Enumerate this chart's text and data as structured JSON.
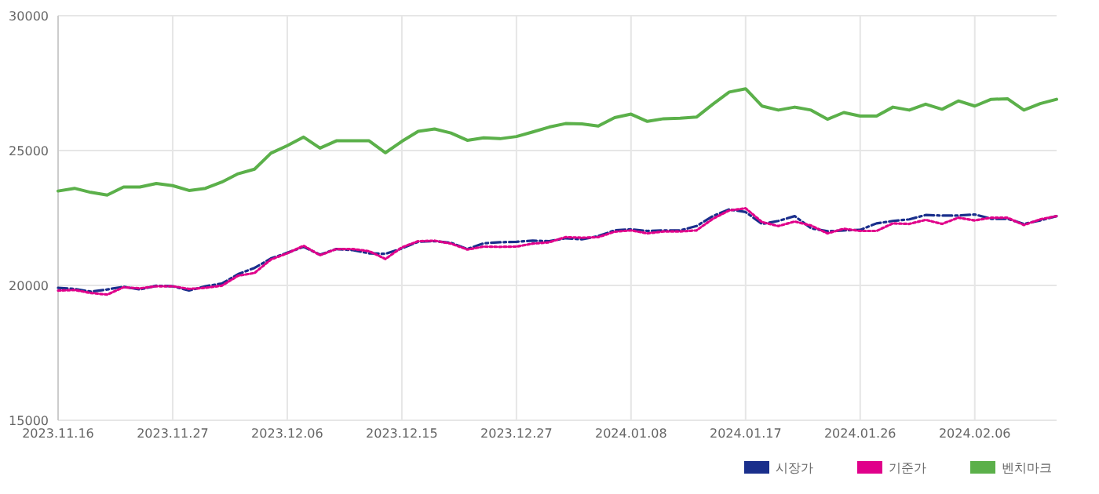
{
  "chart_data": {
    "type": "line",
    "categories": [
      "2023.11.16",
      null,
      null,
      null,
      null,
      null,
      null,
      "2023.11.27",
      null,
      null,
      null,
      null,
      null,
      null,
      "2023.12.06",
      null,
      null,
      null,
      null,
      null,
      null,
      "2023.12.15",
      null,
      null,
      null,
      null,
      null,
      null,
      "2023.12.27",
      null,
      null,
      null,
      null,
      null,
      null,
      "2024.01.08",
      null,
      null,
      null,
      null,
      null,
      null,
      "2024.01.17",
      null,
      null,
      null,
      null,
      null,
      null,
      "2024.01.26",
      null,
      null,
      null,
      null,
      null,
      null,
      "2024.02.06",
      null,
      null,
      null,
      null,
      null
    ],
    "series": [
      {
        "name": "시장가",
        "color": "#1a2f8c",
        "line_style": "dashed",
        "values": [
          19910,
          19870,
          19770,
          19850,
          19950,
          19850,
          19990,
          19970,
          19810,
          19970,
          20070,
          20420,
          20650,
          21000,
          21210,
          21430,
          21140,
          21350,
          21310,
          21190,
          21170,
          21370,
          21620,
          21640,
          21580,
          21350,
          21560,
          21600,
          21620,
          21660,
          21640,
          21750,
          21710,
          21830,
          22040,
          22080,
          22020,
          22040,
          22040,
          22200,
          22570,
          22820,
          22720,
          22280,
          22390,
          22570,
          22120,
          22010,
          22040,
          22060,
          22300,
          22390,
          22450,
          22610,
          22590,
          22590,
          22630,
          22470,
          22470,
          22280,
          22410,
          22570
        ]
      },
      {
        "name": "기준가",
        "color": "#e0008a",
        "line_style": "dotted",
        "values": [
          19810,
          19830,
          19720,
          19660,
          19930,
          19890,
          19970,
          19970,
          19870,
          19910,
          19990,
          20360,
          20460,
          20960,
          21190,
          21470,
          21120,
          21350,
          21350,
          21270,
          20980,
          21410,
          21640,
          21660,
          21550,
          21330,
          21440,
          21430,
          21440,
          21550,
          21600,
          21790,
          21770,
          21790,
          21990,
          22040,
          21930,
          22000,
          22000,
          22040,
          22470,
          22780,
          22860,
          22350,
          22200,
          22370,
          22220,
          21930,
          22100,
          22020,
          22020,
          22300,
          22280,
          22430,
          22280,
          22510,
          22410,
          22510,
          22510,
          22240,
          22450,
          22570
        ]
      },
      {
        "name": "벤치마크",
        "color": "#5bb04a",
        "line_style": "solid",
        "values": [
          23500,
          23600,
          23450,
          23350,
          23650,
          23650,
          23780,
          23700,
          23520,
          23600,
          23830,
          24140,
          24310,
          24900,
          25180,
          25500,
          25090,
          25360,
          25360,
          25360,
          24920,
          25340,
          25710,
          25800,
          25650,
          25380,
          25470,
          25440,
          25520,
          25690,
          25870,
          26000,
          25990,
          25910,
          26220,
          26350,
          26080,
          26180,
          26200,
          26240,
          26720,
          27170,
          27290,
          26650,
          26500,
          26610,
          26500,
          26160,
          26410,
          26280,
          26280,
          26610,
          26500,
          26720,
          26530,
          26840,
          26650,
          26900,
          26920,
          26500,
          26740,
          26900
        ]
      }
    ],
    "ylim": [
      15000,
      30000
    ],
    "yticks": [
      15000,
      20000,
      25000,
      30000
    ],
    "grid": true,
    "legend": "bottom right"
  }
}
